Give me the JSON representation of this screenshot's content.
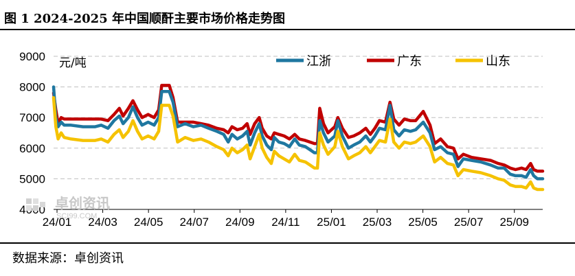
{
  "title": "图 1  2024-2025 年中国顺酐主要市场价格走势图",
  "source": "数据来源：卓创资讯",
  "watermark": {
    "brand": "卓创资讯",
    "site": "SCI99.COM"
  },
  "colors": {
    "jiangzhe": "#1f77a0",
    "guangdong": "#c00000",
    "shandong": "#f5c200",
    "grid": "#bfbfbf"
  },
  "chart_data": {
    "type": "line",
    "unit_label": "元/吨",
    "ylim": [
      4000,
      9000
    ],
    "yticks": [
      4000,
      5000,
      6000,
      7000,
      8000,
      9000
    ],
    "xtick_labels": [
      "24/01",
      "24/03",
      "24/05",
      "24/07",
      "24/09",
      "24/11",
      "25/01",
      "25/03",
      "25/05",
      "25/07",
      "25/09"
    ],
    "grid": "horizontal dashed",
    "legend_position": "top",
    "x_start": "2024-01-02",
    "x_end": "2025-10-10",
    "series": [
      {
        "name": "江浙",
        "color_key": "jiangzhe",
        "points": [
          [
            "2024-01-02",
            8000
          ],
          [
            "2024-01-05",
            7000
          ],
          [
            "2024-01-08",
            6700
          ],
          [
            "2024-01-12",
            6850
          ],
          [
            "2024-01-16",
            6750
          ],
          [
            "2024-01-25",
            6750
          ],
          [
            "2024-02-10",
            6700
          ],
          [
            "2024-02-26",
            6700
          ],
          [
            "2024-03-05",
            6750
          ],
          [
            "2024-03-14",
            6650
          ],
          [
            "2024-03-22",
            6900
          ],
          [
            "2024-03-29",
            7050
          ],
          [
            "2024-04-03",
            6800
          ],
          [
            "2024-04-10",
            7000
          ],
          [
            "2024-04-16",
            7350
          ],
          [
            "2024-04-22",
            7000
          ],
          [
            "2024-04-28",
            6750
          ],
          [
            "2024-05-06",
            6850
          ],
          [
            "2024-05-14",
            6750
          ],
          [
            "2024-05-20",
            7000
          ],
          [
            "2024-05-24",
            7850
          ],
          [
            "2024-06-03",
            7850
          ],
          [
            "2024-06-08",
            7500
          ],
          [
            "2024-06-14",
            6700
          ],
          [
            "2024-06-24",
            6800
          ],
          [
            "2024-07-05",
            6700
          ],
          [
            "2024-07-15",
            6750
          ],
          [
            "2024-07-25",
            6650
          ],
          [
            "2024-08-05",
            6550
          ],
          [
            "2024-08-14",
            6450
          ],
          [
            "2024-08-20",
            6200
          ],
          [
            "2024-08-25",
            6450
          ],
          [
            "2024-09-01",
            6300
          ],
          [
            "2024-09-08",
            6400
          ],
          [
            "2024-09-14",
            6550
          ],
          [
            "2024-09-18",
            6100
          ],
          [
            "2024-09-24",
            6500
          ],
          [
            "2024-09-30",
            6800
          ],
          [
            "2024-10-04",
            6400
          ],
          [
            "2024-10-10",
            6100
          ],
          [
            "2024-10-16",
            5950
          ],
          [
            "2024-10-20",
            6350
          ],
          [
            "2024-10-26",
            6200
          ],
          [
            "2024-11-02",
            6150
          ],
          [
            "2024-11-09",
            6050
          ],
          [
            "2024-11-16",
            6300
          ],
          [
            "2024-11-22",
            6100
          ],
          [
            "2024-11-30",
            6050
          ],
          [
            "2024-12-06",
            5950
          ],
          [
            "2024-12-12",
            5850
          ],
          [
            "2024-12-16",
            5850
          ],
          [
            "2024-12-19",
            6900
          ],
          [
            "2024-12-24",
            6500
          ],
          [
            "2024-12-30",
            6200
          ],
          [
            "2025-01-08",
            6400
          ],
          [
            "2025-01-12",
            6900
          ],
          [
            "2025-01-18",
            6400
          ],
          [
            "2025-01-26",
            6000
          ],
          [
            "2025-02-02",
            6100
          ],
          [
            "2025-02-10",
            6200
          ],
          [
            "2025-02-18",
            6400
          ],
          [
            "2025-02-24",
            6200
          ],
          [
            "2025-03-02",
            6400
          ],
          [
            "2025-03-08",
            6650
          ],
          [
            "2025-03-16",
            6600
          ],
          [
            "2025-03-22",
            7400
          ],
          [
            "2025-03-27",
            6600
          ],
          [
            "2025-04-03",
            6400
          ],
          [
            "2025-04-10",
            6600
          ],
          [
            "2025-04-18",
            6550
          ],
          [
            "2025-04-25",
            6600
          ],
          [
            "2025-05-05",
            6850
          ],
          [
            "2025-05-14",
            6500
          ],
          [
            "2025-05-20",
            5950
          ],
          [
            "2025-05-28",
            6050
          ],
          [
            "2025-06-06",
            5850
          ],
          [
            "2025-06-14",
            5800
          ],
          [
            "2025-06-20",
            5400
          ],
          [
            "2025-06-27",
            5650
          ],
          [
            "2025-07-08",
            5600
          ],
          [
            "2025-07-20",
            5550
          ],
          [
            "2025-08-02",
            5450
          ],
          [
            "2025-08-12",
            5350
          ],
          [
            "2025-08-20",
            5350
          ],
          [
            "2025-08-28",
            5150
          ],
          [
            "2025-09-04",
            5100
          ],
          [
            "2025-09-12",
            5100
          ],
          [
            "2025-09-18",
            5050
          ],
          [
            "2025-09-24",
            5300
          ],
          [
            "2025-09-28",
            5100
          ],
          [
            "2025-10-03",
            5000
          ],
          [
            "2025-10-10",
            5000
          ]
        ]
      },
      {
        "name": "广东",
        "color_key": "guangdong",
        "points": [
          [
            "2024-01-02",
            7800
          ],
          [
            "2024-01-05",
            7250
          ],
          [
            "2024-01-08",
            6800
          ],
          [
            "2024-01-12",
            7000
          ],
          [
            "2024-01-16",
            6950
          ],
          [
            "2024-01-25",
            6950
          ],
          [
            "2024-02-10",
            6950
          ],
          [
            "2024-02-26",
            6950
          ],
          [
            "2024-03-05",
            6950
          ],
          [
            "2024-03-14",
            6900
          ],
          [
            "2024-03-22",
            7100
          ],
          [
            "2024-03-29",
            7300
          ],
          [
            "2024-04-03",
            7050
          ],
          [
            "2024-04-10",
            7300
          ],
          [
            "2024-04-16",
            7550
          ],
          [
            "2024-04-22",
            7250
          ],
          [
            "2024-04-28",
            7000
          ],
          [
            "2024-05-06",
            7100
          ],
          [
            "2024-05-14",
            7000
          ],
          [
            "2024-05-20",
            7250
          ],
          [
            "2024-05-24",
            8050
          ],
          [
            "2024-06-03",
            8050
          ],
          [
            "2024-06-08",
            7650
          ],
          [
            "2024-06-14",
            6850
          ],
          [
            "2024-06-24",
            6850
          ],
          [
            "2024-07-05",
            6850
          ],
          [
            "2024-07-15",
            6800
          ],
          [
            "2024-07-25",
            6750
          ],
          [
            "2024-08-05",
            6650
          ],
          [
            "2024-08-14",
            6600
          ],
          [
            "2024-08-20",
            6500
          ],
          [
            "2024-08-25",
            6700
          ],
          [
            "2024-09-01",
            6600
          ],
          [
            "2024-09-08",
            6650
          ],
          [
            "2024-09-14",
            6800
          ],
          [
            "2024-09-18",
            6450
          ],
          [
            "2024-09-24",
            6800
          ],
          [
            "2024-09-30",
            7000
          ],
          [
            "2024-10-04",
            6650
          ],
          [
            "2024-10-10",
            6400
          ],
          [
            "2024-10-16",
            6300
          ],
          [
            "2024-10-20",
            6500
          ],
          [
            "2024-10-26",
            6450
          ],
          [
            "2024-11-02",
            6400
          ],
          [
            "2024-11-09",
            6300
          ],
          [
            "2024-11-16",
            6450
          ],
          [
            "2024-11-22",
            6300
          ],
          [
            "2024-11-30",
            6250
          ],
          [
            "2024-12-06",
            6200
          ],
          [
            "2024-12-12",
            6150
          ],
          [
            "2024-12-16",
            6150
          ],
          [
            "2024-12-19",
            7300
          ],
          [
            "2024-12-24",
            6800
          ],
          [
            "2024-12-30",
            6500
          ],
          [
            "2025-01-08",
            6700
          ],
          [
            "2025-01-12",
            7000
          ],
          [
            "2025-01-18",
            6650
          ],
          [
            "2025-01-26",
            6350
          ],
          [
            "2025-02-02",
            6400
          ],
          [
            "2025-02-10",
            6500
          ],
          [
            "2025-02-18",
            6650
          ],
          [
            "2025-02-24",
            6450
          ],
          [
            "2025-03-02",
            6650
          ],
          [
            "2025-03-08",
            6900
          ],
          [
            "2025-03-16",
            6850
          ],
          [
            "2025-03-22",
            7500
          ],
          [
            "2025-03-27",
            6950
          ],
          [
            "2025-04-03",
            6750
          ],
          [
            "2025-04-10",
            6950
          ],
          [
            "2025-04-18",
            6900
          ],
          [
            "2025-04-25",
            6900
          ],
          [
            "2025-05-05",
            7200
          ],
          [
            "2025-05-14",
            6750
          ],
          [
            "2025-05-20",
            6150
          ],
          [
            "2025-05-28",
            6300
          ],
          [
            "2025-06-06",
            6050
          ],
          [
            "2025-06-14",
            6000
          ],
          [
            "2025-06-20",
            5650
          ],
          [
            "2025-06-27",
            5800
          ],
          [
            "2025-07-08",
            5700
          ],
          [
            "2025-07-20",
            5650
          ],
          [
            "2025-08-02",
            5600
          ],
          [
            "2025-08-12",
            5500
          ],
          [
            "2025-08-20",
            5450
          ],
          [
            "2025-08-28",
            5350
          ],
          [
            "2025-09-04",
            5300
          ],
          [
            "2025-09-12",
            5350
          ],
          [
            "2025-09-18",
            5300
          ],
          [
            "2025-09-24",
            5500
          ],
          [
            "2025-09-28",
            5300
          ],
          [
            "2025-10-03",
            5250
          ],
          [
            "2025-10-10",
            5250
          ]
        ]
      },
      {
        "name": "山东",
        "color_key": "shandong",
        "points": [
          [
            "2024-01-02",
            7650
          ],
          [
            "2024-01-05",
            6700
          ],
          [
            "2024-01-08",
            6300
          ],
          [
            "2024-01-12",
            6500
          ],
          [
            "2024-01-16",
            6350
          ],
          [
            "2024-01-25",
            6300
          ],
          [
            "2024-02-10",
            6250
          ],
          [
            "2024-02-26",
            6250
          ],
          [
            "2024-03-05",
            6300
          ],
          [
            "2024-03-14",
            6200
          ],
          [
            "2024-03-22",
            6450
          ],
          [
            "2024-03-29",
            6600
          ],
          [
            "2024-04-03",
            6350
          ],
          [
            "2024-04-10",
            6550
          ],
          [
            "2024-04-16",
            6900
          ],
          [
            "2024-04-22",
            6550
          ],
          [
            "2024-04-28",
            6300
          ],
          [
            "2024-05-06",
            6400
          ],
          [
            "2024-05-14",
            6300
          ],
          [
            "2024-05-20",
            6550
          ],
          [
            "2024-05-24",
            7400
          ],
          [
            "2024-06-03",
            7400
          ],
          [
            "2024-06-08",
            7050
          ],
          [
            "2024-06-14",
            6200
          ],
          [
            "2024-06-24",
            6350
          ],
          [
            "2024-07-05",
            6250
          ],
          [
            "2024-07-15",
            6300
          ],
          [
            "2024-07-25",
            6200
          ],
          [
            "2024-08-05",
            6050
          ],
          [
            "2024-08-14",
            5950
          ],
          [
            "2024-08-20",
            5750
          ],
          [
            "2024-08-25",
            6000
          ],
          [
            "2024-09-01",
            5850
          ],
          [
            "2024-09-08",
            5950
          ],
          [
            "2024-09-14",
            6100
          ],
          [
            "2024-09-18",
            5650
          ],
          [
            "2024-09-24",
            6050
          ],
          [
            "2024-09-30",
            6450
          ],
          [
            "2024-10-04",
            6000
          ],
          [
            "2024-10-10",
            5700
          ],
          [
            "2024-10-16",
            5500
          ],
          [
            "2024-10-20",
            5900
          ],
          [
            "2024-10-26",
            5750
          ],
          [
            "2024-11-02",
            5650
          ],
          [
            "2024-11-09",
            5550
          ],
          [
            "2024-11-16",
            5800
          ],
          [
            "2024-11-22",
            5600
          ],
          [
            "2024-11-30",
            5550
          ],
          [
            "2024-12-06",
            5450
          ],
          [
            "2024-12-12",
            5350
          ],
          [
            "2024-12-16",
            5350
          ],
          [
            "2024-12-19",
            6500
          ],
          [
            "2024-12-24",
            6100
          ],
          [
            "2024-12-30",
            5800
          ],
          [
            "2025-01-08",
            6050
          ],
          [
            "2025-01-12",
            6550
          ],
          [
            "2025-01-18",
            6050
          ],
          [
            "2025-01-26",
            5650
          ],
          [
            "2025-02-02",
            5750
          ],
          [
            "2025-02-10",
            5850
          ],
          [
            "2025-02-18",
            6050
          ],
          [
            "2025-02-24",
            5850
          ],
          [
            "2025-03-02",
            6050
          ],
          [
            "2025-03-08",
            6250
          ],
          [
            "2025-03-16",
            6200
          ],
          [
            "2025-03-22",
            6950
          ],
          [
            "2025-03-27",
            6200
          ],
          [
            "2025-04-03",
            6000
          ],
          [
            "2025-04-10",
            6200
          ],
          [
            "2025-04-18",
            6150
          ],
          [
            "2025-04-25",
            6200
          ],
          [
            "2025-05-05",
            6400
          ],
          [
            "2025-05-14",
            6050
          ],
          [
            "2025-05-20",
            5550
          ],
          [
            "2025-05-28",
            5700
          ],
          [
            "2025-06-06",
            5500
          ],
          [
            "2025-06-14",
            5450
          ],
          [
            "2025-06-20",
            5100
          ],
          [
            "2025-06-27",
            5300
          ],
          [
            "2025-07-08",
            5250
          ],
          [
            "2025-07-20",
            5200
          ],
          [
            "2025-08-02",
            5100
          ],
          [
            "2025-08-12",
            5000
          ],
          [
            "2025-08-20",
            4950
          ],
          [
            "2025-08-28",
            4800
          ],
          [
            "2025-09-04",
            4750
          ],
          [
            "2025-09-12",
            4750
          ],
          [
            "2025-09-18",
            4700
          ],
          [
            "2025-09-24",
            4900
          ],
          [
            "2025-09-28",
            4700
          ],
          [
            "2025-10-03",
            4650
          ],
          [
            "2025-10-10",
            4650
          ]
        ]
      }
    ]
  }
}
